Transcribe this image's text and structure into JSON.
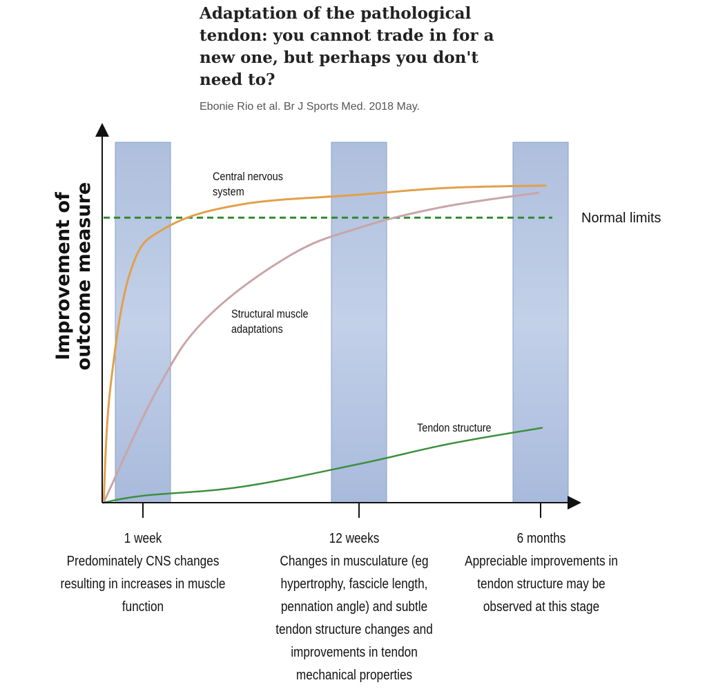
{
  "header": {
    "title": "Adaptation of the pathological tendon: you cannot trade in for a new one, but perhaps you don't need to?",
    "citation": "Ebonie Rio et al. Br J Sports Med. 2018 May."
  },
  "chart_data": {
    "type": "line",
    "title": "",
    "xlabel": "",
    "ylabel": "Improvement of outcome measure",
    "x": [
      "0",
      "1 week",
      "12 weeks",
      "6 months"
    ],
    "ylim": [
      0,
      100
    ],
    "reference_line": {
      "label": "Normal limits",
      "value": 80
    },
    "series": [
      {
        "name": "Central nervous system",
        "color": "#e2a04a",
        "values": [
          0,
          70,
          88,
          89
        ]
      },
      {
        "name": "Structural muscle adaptations",
        "color": "#c9a5a8",
        "values": [
          0,
          35,
          74,
          87
        ]
      },
      {
        "name": "Tendon structure",
        "color": "#3d8f3d",
        "values": [
          0,
          2,
          10,
          21
        ]
      }
    ],
    "highlight_bands": [
      "1 week",
      "12 weeks",
      "6 months"
    ],
    "ticks": [
      {
        "label": "1 week",
        "description": "Predominately CNS changes resulting in increases in muscle function"
      },
      {
        "label": "12 weeks",
        "description": "Changes in musculature (eg hypertrophy, fascicle length, pennation angle) and subtle tendon structure changes and improvements in tendon mechanical properties"
      },
      {
        "label": "6 months",
        "description": "Appreciable improvements in tendon structure may be observed at this stage"
      }
    ]
  }
}
